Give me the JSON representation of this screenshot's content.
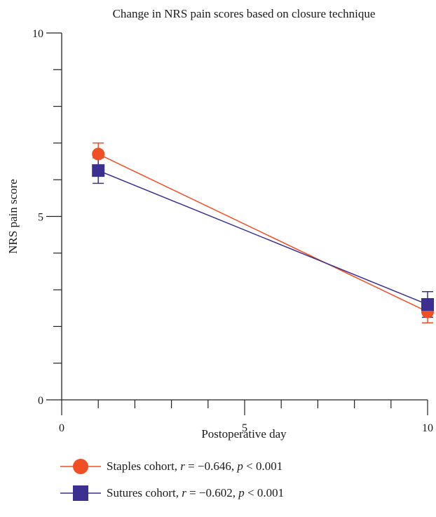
{
  "chart_data": {
    "type": "line",
    "title": "Change in NRS pain scores based on closure technique",
    "xlabel": "Postoperative day",
    "ylabel": "NRS pain score",
    "xlim": [
      0,
      10
    ],
    "ylim": [
      0,
      10
    ],
    "x_ticks": [
      0,
      5,
      10
    ],
    "y_ticks": [
      0,
      5,
      10
    ],
    "x_minor_ticks": [
      1,
      2,
      3,
      4,
      6,
      7,
      8,
      9
    ],
    "y_minor_ticks": [
      1,
      2,
      3,
      4,
      6,
      7,
      8,
      9
    ],
    "grid": false,
    "legend_position": "bottom",
    "series": [
      {
        "name": "Staples cohort",
        "stat_r": "−0.646",
        "stat_p": "< 0.001",
        "color": "#f04e23",
        "marker": "circle",
        "x": [
          1,
          10
        ],
        "y": [
          6.7,
          2.4
        ],
        "err": [
          0.3,
          0.3
        ]
      },
      {
        "name": "Sutures cohort",
        "stat_r": "−0.602",
        "stat_p": "< 0.001",
        "color": "#3b2f8f",
        "marker": "square",
        "x": [
          1,
          10
        ],
        "y": [
          6.25,
          2.6
        ],
        "err": [
          0.35,
          0.35
        ]
      }
    ]
  }
}
